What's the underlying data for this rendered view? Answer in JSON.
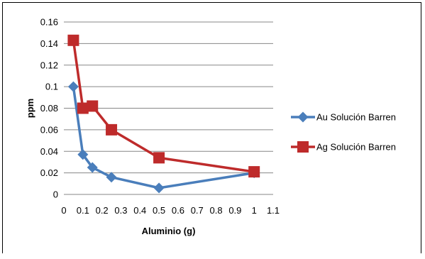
{
  "chart_data": {
    "type": "line",
    "title": "",
    "xlabel": "Aluminio (g)",
    "ylabel": "ppm",
    "xlim": [
      0,
      1.1
    ],
    "ylim": [
      0,
      0.16
    ],
    "x_ticks": [
      0,
      0.1,
      0.2,
      0.3,
      0.4,
      0.5,
      0.6,
      0.7,
      0.8,
      0.9,
      1,
      1.1
    ],
    "x_tick_labels": [
      "0",
      "0.1",
      "0.2",
      "0.3",
      "0.4",
      "0.5",
      "0.6",
      "0.7",
      "0.8",
      "0.9",
      "1",
      "1.1"
    ],
    "y_ticks": [
      0,
      0.02,
      0.04,
      0.06,
      0.08,
      0.1,
      0.12,
      0.14,
      0.16
    ],
    "y_tick_labels": [
      "0",
      "0.02",
      "0.04",
      "0.06",
      "0.08",
      "0.1",
      "0.12",
      "0.14",
      "0.16"
    ],
    "grid": "horizontal",
    "legend_position": "right",
    "series": [
      {
        "name": "Au Solución Barren",
        "color": "#4a7ebb",
        "marker": "diamond",
        "x": [
          0.05,
          0.1,
          0.15,
          0.25,
          0.5,
          1
        ],
        "y": [
          0.1,
          0.037,
          0.025,
          0.016,
          0.006,
          0.02
        ]
      },
      {
        "name": "Ag Solución Barren",
        "color": "#be2b2b",
        "marker": "square",
        "x": [
          0.05,
          0.1,
          0.15,
          0.25,
          0.5,
          1
        ],
        "y": [
          0.143,
          0.08,
          0.082,
          0.06,
          0.034,
          0.021
        ]
      }
    ]
  }
}
